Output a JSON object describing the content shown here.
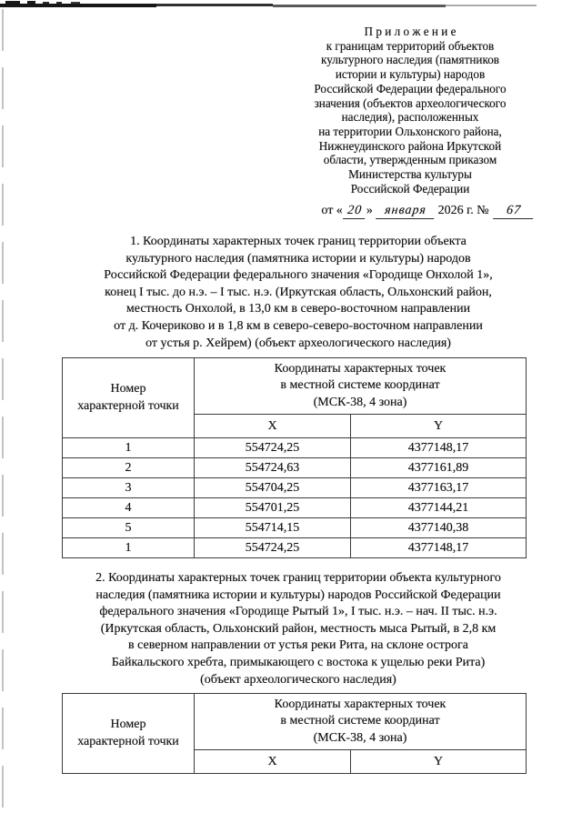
{
  "appendix_header": {
    "lines": [
      "П р и л о ж е н и е",
      "к границам территорий объектов",
      "культурного наследия (памятников",
      "истории и культуры) народов",
      "Российской Федерации федерального",
      "значения (объектов археологического",
      "наследия), расположенных",
      "на территории Ольхонского района,",
      "Нижнеудинского района Иркутской",
      "области, утвержденным приказом",
      "Министерства культуры",
      "Российской Федерации"
    ]
  },
  "dateline": {
    "prefix": "от «",
    "day": "20",
    "close_quote": "»",
    "month": "января",
    "year_part": "2026 г. №",
    "number": "67"
  },
  "section1": {
    "lines": [
      "1. Координаты характерных точек границ территории объекта",
      "культурного наследия (памятника истории и культуры) народов",
      "Российской Федерации федерального значения «Городище Онхолой 1»,",
      "конец I тыс. до н.э. – I тыс. н.э. (Иркутская область, Ольхонский район,",
      "местность Онхолой, в 13,0 км в северо-восточном направлении",
      "от д. Кочериково и в 1,8 км в северо-северо-восточном направлении",
      "от устья р. Хейрем) (объект археологического наследия)"
    ]
  },
  "table1": {
    "col_number": "Номер\nхарактерной точки",
    "col_coords": "Координаты характерных точек\nв местной системе координат\n(МСК-38, 4 зона)",
    "col_x": "X",
    "col_y": "Y",
    "rows": [
      [
        "1",
        "554724,25",
        "4377148,17"
      ],
      [
        "2",
        "554724,63",
        "4377161,89"
      ],
      [
        "3",
        "554704,25",
        "4377163,17"
      ],
      [
        "4",
        "554701,25",
        "4377144,21"
      ],
      [
        "5",
        "554714,15",
        "4377140,38"
      ],
      [
        "1",
        "554724,25",
        "4377148,17"
      ]
    ]
  },
  "section2": {
    "lines": [
      "2. Координаты характерных точек границ территории объекта культурного",
      "наследия (памятника истории и культуры) народов Российской Федерации",
      "федерального значения «Городище Рытый 1», I тыс. н.э. – нач. II тыс. н.э.",
      "(Иркутская область, Ольхонский район, местность мыса Рытый, в 2,8 км",
      "в северном направлении от устья реки Рита, на склоне острога",
      "Байкальского хребта, примыкающего с востока к ущелью реки Рита)",
      "(объект археологического наследия)"
    ]
  },
  "table2": {
    "col_number": "Номер\nхарактерной точки",
    "col_coords": "Координаты характерных точек\nв местной системе координат\n(МСК-38, 4 зона)",
    "col_x": "X",
    "col_y": "Y"
  }
}
